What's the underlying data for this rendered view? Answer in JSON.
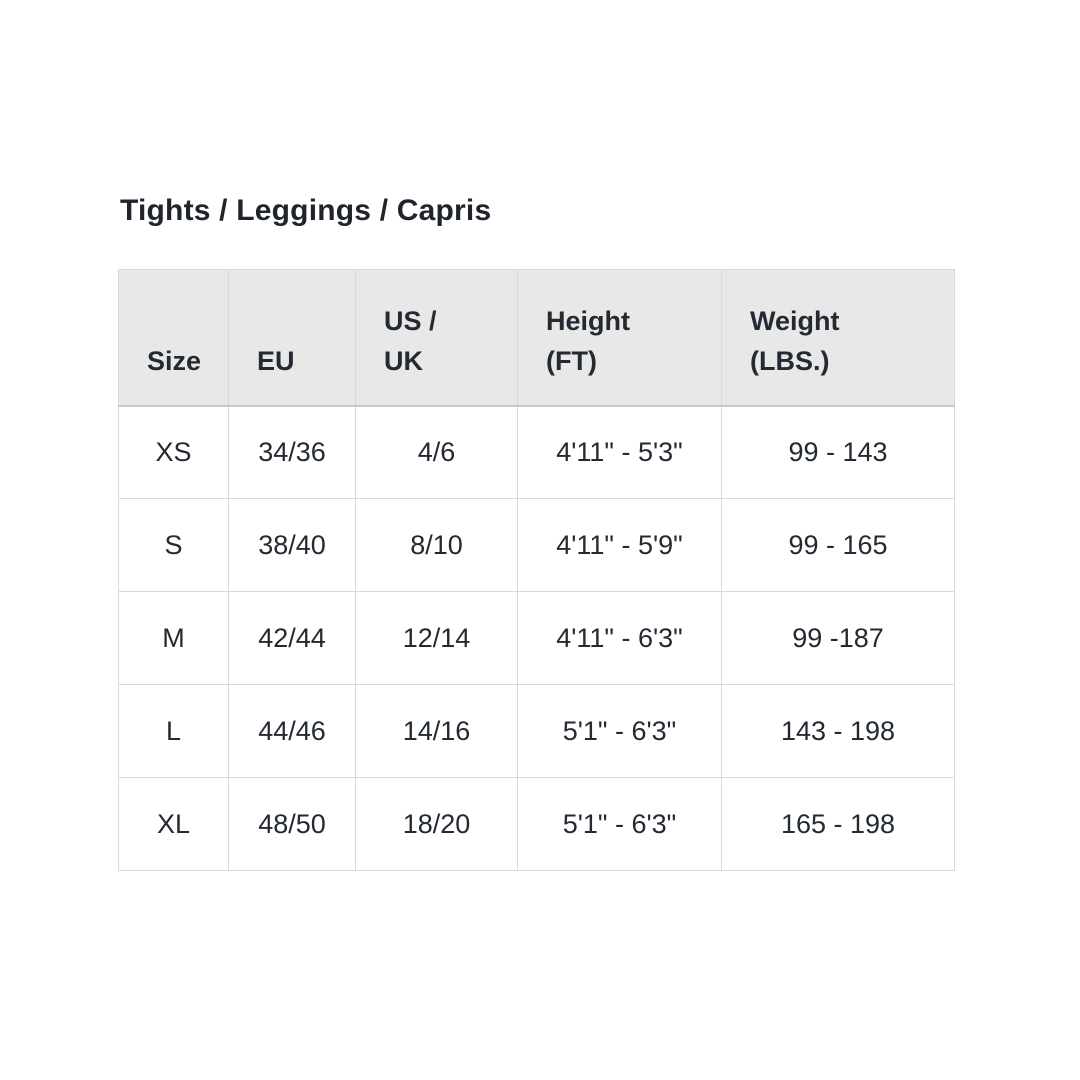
{
  "section": {
    "title": "Tights / Leggings / Capris"
  },
  "colors": {
    "page_background": "#ffffff",
    "header_background": "#e9e8e8",
    "cell_border": "#d9d9d9",
    "header_bottom_border": "#c9c9c9",
    "text": "#242a32"
  },
  "table": {
    "columns": [
      {
        "key": "size",
        "label": "Size"
      },
      {
        "key": "eu",
        "label": "EU"
      },
      {
        "key": "us_uk",
        "label": "US /\nUK"
      },
      {
        "key": "height",
        "label": "Height\n(FT)"
      },
      {
        "key": "weight",
        "label": "Weight\n(LBS.)"
      }
    ],
    "rows": [
      {
        "size": "XS",
        "eu": "34/36",
        "us_uk": "4/6",
        "height": "4'11\" - 5'3\"",
        "weight": "99 - 143"
      },
      {
        "size": "S",
        "eu": "38/40",
        "us_uk": "8/10",
        "height": "4'11\" - 5'9\"",
        "weight": "99 - 165"
      },
      {
        "size": "M",
        "eu": "42/44",
        "us_uk": "12/14",
        "height": "4'11\" - 6'3\"",
        "weight": "99 -187"
      },
      {
        "size": "L",
        "eu": "44/46",
        "us_uk": "14/16",
        "height": "5'1\" - 6'3\"",
        "weight": "143 - 198"
      },
      {
        "size": "XL",
        "eu": "48/50",
        "us_uk": "18/20",
        "height": "5'1\" - 6'3\"",
        "weight": "165 - 198"
      }
    ]
  }
}
